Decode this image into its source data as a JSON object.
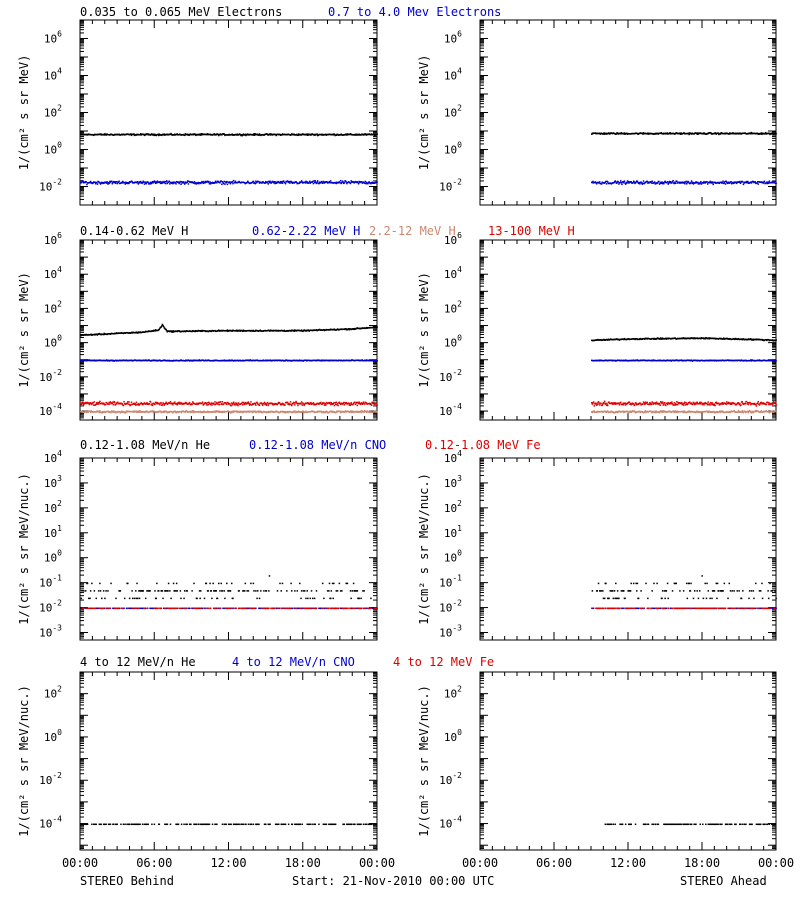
{
  "footer": {
    "left": "STEREO Behind",
    "center": "Start: 21-Nov-2010 00:00 UTC",
    "right": "STEREO Ahead"
  },
  "x_axis": {
    "ticks": [
      "00:00",
      "06:00",
      "12:00",
      "18:00",
      "00:00"
    ]
  },
  "chart_data": [
    {
      "type": "scatter",
      "panel": "electrons",
      "ylabel": "1/(cm² s sr MeV)",
      "yscale": "log",
      "ylim": [
        0.001,
        10000000
      ],
      "ytick_exponents": [
        -2,
        0,
        2,
        4,
        6
      ],
      "legend": [
        {
          "label": "0.035 to 0.065 MeV Electrons",
          "color": "#000000"
        },
        {
          "label": "0.7 to 4.0 Mev Electrons",
          "color": "#0000cc"
        }
      ],
      "behind": {
        "x_range_hours": [
          0,
          24
        ],
        "series": [
          {
            "name": "0.035 to 0.065 MeV Electrons",
            "color": "#000000",
            "level": 7,
            "spread_decades": 0.06
          },
          {
            "name": "0.7 to 4.0 Mev Electrons",
            "color": "#0000cc",
            "level": 0.018,
            "spread_decades": 0.12
          }
        ]
      },
      "ahead": {
        "x_range_hours": [
          9,
          24
        ],
        "series": [
          {
            "name": "0.035 to 0.065 MeV Electrons",
            "color": "#000000",
            "level": 8,
            "spread_decades": 0.06
          },
          {
            "name": "0.7 to 4.0 Mev Electrons",
            "color": "#0000cc",
            "level": 0.018,
            "spread_decades": 0.12
          }
        ]
      }
    },
    {
      "type": "scatter",
      "panel": "protons",
      "ylabel": "1/(cm² s sr MeV)",
      "yscale": "log",
      "ylim": [
        3e-05,
        1000000
      ],
      "ytick_exponents": [
        -4,
        -2,
        0,
        2,
        4,
        6
      ],
      "legend": [
        {
          "label": "0.14-0.62 MeV H",
          "color": "#000000"
        },
        {
          "label": "0.62-2.22 MeV H",
          "color": "#0000cc"
        },
        {
          "label": "2.2-12 MeV H",
          "color": "#cc8870"
        },
        {
          "label": "13-100 MeV H",
          "color": "#dd0000"
        }
      ],
      "behind": {
        "x_range_hours": [
          0,
          24
        ],
        "series": [
          {
            "name": "0.14-0.62 MeV H",
            "color": "#000000",
            "profile": [
              [
                0,
                3
              ],
              [
                5,
                4.5
              ],
              [
                6.3,
                6
              ],
              [
                6.6,
                12
              ],
              [
                7,
                5
              ],
              [
                12,
                5.5
              ],
              [
                18,
                5.5
              ],
              [
                22,
                7
              ],
              [
                24,
                9
              ]
            ],
            "spread_decades": 0.05
          },
          {
            "name": "0.62-2.22 MeV H",
            "color": "#0000cc",
            "level": 0.1,
            "spread_decades": 0.04
          },
          {
            "name": "13-100 MeV H",
            "color": "#dd0000",
            "level": 0.0003,
            "spread_decades": 0.15
          },
          {
            "name": "2.2-12 MeV H",
            "color": "#cc8870",
            "level": 0.0001,
            "spread_decades": 0.08
          }
        ]
      },
      "ahead": {
        "x_range_hours": [
          9,
          24
        ],
        "series": [
          {
            "name": "0.14-0.62 MeV H",
            "color": "#000000",
            "profile": [
              [
                9,
                1.5
              ],
              [
                12,
                1.8
              ],
              [
                18,
                2
              ],
              [
                22,
                1.7
              ],
              [
                24,
                1.5
              ]
            ],
            "spread_decades": 0.05
          },
          {
            "name": "0.62-2.22 MeV H",
            "color": "#0000cc",
            "level": 0.1,
            "spread_decades": 0.04
          },
          {
            "name": "13-100 MeV H",
            "color": "#dd0000",
            "level": 0.0003,
            "spread_decades": 0.15
          },
          {
            "name": "2.2-12 MeV H",
            "color": "#cc8870",
            "level": 0.0001,
            "spread_decades": 0.08
          }
        ]
      }
    },
    {
      "type": "scatter",
      "panel": "heavy-ions-low",
      "ylabel": "1/(cm² s sr MeV/nuc.)",
      "yscale": "log",
      "ylim": [
        0.0005,
        10000
      ],
      "ytick_exponents": [
        -3,
        -2,
        -1,
        0,
        1,
        2,
        3,
        4
      ],
      "legend": [
        {
          "label": "0.12-1.08 MeV/n He",
          "color": "#000000"
        },
        {
          "label": "0.12-1.08 MeV/n CNO",
          "color": "#0000cc"
        },
        {
          "label": "0.12-1.08 MeV Fe",
          "color": "#dd0000"
        }
      ],
      "behind": {
        "x_range_hours": [
          0,
          24
        ],
        "series": [
          {
            "name": "0.12-1.08 MeV/n He",
            "color": "#000000",
            "level": 0.05,
            "spread_decades": 0.5,
            "sparse": true
          },
          {
            "name": "0.12-1.08 MeV/n CNO",
            "color": "#0000cc",
            "level": 0.01,
            "spread_decades": 0.0,
            "sparse": true
          },
          {
            "name": "0.12-1.08 MeV Fe",
            "color": "#dd0000",
            "level": 0.01,
            "spread_decades": 0.0,
            "sparse": true
          }
        ]
      },
      "ahead": {
        "x_range_hours": [
          9,
          24
        ],
        "series": [
          {
            "name": "0.12-1.08 MeV/n He",
            "color": "#000000",
            "level": 0.05,
            "spread_decades": 0.4,
            "sparse": true
          },
          {
            "name": "0.12-1.08 MeV/n CNO",
            "color": "#0000cc",
            "level": 0.01,
            "spread_decades": 0.0,
            "sparse": true
          },
          {
            "name": "0.12-1.08 MeV Fe",
            "color": "#dd0000",
            "level": 0.01,
            "spread_decades": 0.0,
            "sparse": true
          }
        ]
      }
    },
    {
      "type": "scatter",
      "panel": "heavy-ions-high",
      "ylabel": "1/(cm² s sr MeV/nuc.)",
      "yscale": "log",
      "ylim": [
        6e-06,
        1000
      ],
      "ytick_exponents": [
        -4,
        -2,
        0,
        2
      ],
      "legend": [
        {
          "label": "4 to 12 MeV/n He",
          "color": "#000000"
        },
        {
          "label": "4 to 12 MeV/n CNO",
          "color": "#0000cc"
        },
        {
          "label": "4 to 12 MeV Fe",
          "color": "#dd0000"
        }
      ],
      "behind": {
        "x_range_hours": [
          0,
          24
        ],
        "series": [
          {
            "name": "4 to 12 MeV/n He",
            "color": "#000000",
            "level": 0.0001,
            "spread_decades": 0.0,
            "sparse": true
          }
        ]
      },
      "ahead": {
        "x_range_hours": [
          10,
          24
        ],
        "series": [
          {
            "name": "4 to 12 MeV/n He",
            "color": "#000000",
            "level": 0.0001,
            "spread_decades": 0.0,
            "sparse": true
          }
        ]
      }
    }
  ]
}
